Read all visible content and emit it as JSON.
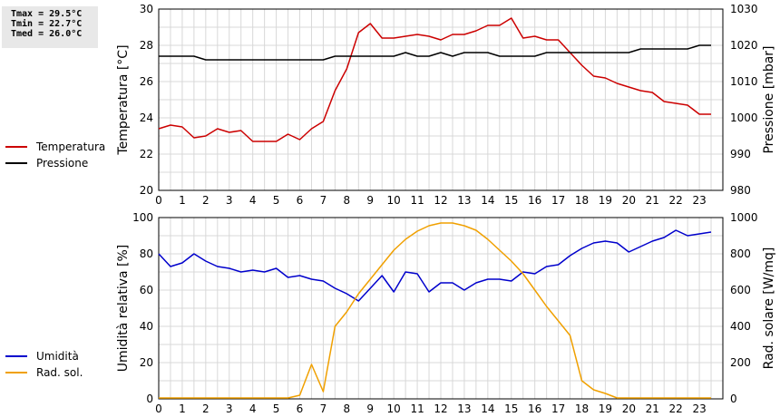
{
  "stats": {
    "tmax": "Tmax = 29.5°C",
    "tmin": "Tmin = 22.7°C",
    "tmed": "Tmed = 26.0°C"
  },
  "colors": {
    "temperature": "#cc0000",
    "pressure": "#000000",
    "humidity": "#0000cc",
    "radiation": "#f0a000",
    "grid": "#d8d8d8"
  },
  "chart_data": [
    {
      "type": "line",
      "xlim": [
        0,
        24
      ],
      "x_ticks": [
        "0",
        "1",
        "2",
        "3",
        "4",
        "5",
        "6",
        "7",
        "8",
        "9",
        "10",
        "11",
        "12",
        "13",
        "14",
        "15",
        "16",
        "17",
        "18",
        "19",
        "20",
        "21",
        "22",
        "23"
      ],
      "ylabel_left": "Temperatura [°C]",
      "ylabel_right": "Pressione [mbar]",
      "ylim_left": [
        20,
        30
      ],
      "ylim_right": [
        980,
        1030
      ],
      "yticks_left": [
        "20",
        "22",
        "24",
        "26",
        "28",
        "30"
      ],
      "yticks_right": [
        "980",
        "990",
        "1000",
        "1010",
        "1020",
        "1030"
      ],
      "legend": [
        "Temperatura",
        "Pressione"
      ],
      "series": [
        {
          "name": "Temperatura",
          "axis": "left",
          "x": [
            0,
            0.5,
            1,
            1.5,
            2,
            2.5,
            3,
            3.5,
            4,
            4.5,
            5,
            5.5,
            6,
            6.5,
            7,
            7.5,
            8,
            8.5,
            9,
            9.5,
            10,
            10.5,
            11,
            11.5,
            12,
            12.5,
            13,
            13.5,
            14,
            14.5,
            15,
            15.5,
            16,
            16.5,
            17,
            17.5,
            18,
            18.5,
            19,
            19.5,
            20,
            20.5,
            21,
            21.5,
            22,
            22.5,
            23,
            23.5
          ],
          "values": [
            23.4,
            23.6,
            23.5,
            22.9,
            23.0,
            23.4,
            23.2,
            23.3,
            22.7,
            22.7,
            22.7,
            23.1,
            22.8,
            23.4,
            23.8,
            25.5,
            26.7,
            28.7,
            29.2,
            28.4,
            28.4,
            28.5,
            28.6,
            28.5,
            28.3,
            28.6,
            28.6,
            28.8,
            29.1,
            29.1,
            29.5,
            28.4,
            28.5,
            28.3,
            28.3,
            27.6,
            26.9,
            26.3,
            26.2,
            25.9,
            25.7,
            25.5,
            25.4,
            24.9,
            24.8,
            24.7,
            24.2,
            24.2
          ]
        },
        {
          "name": "Pressione",
          "axis": "right",
          "x": [
            0,
            0.5,
            1,
            1.5,
            2,
            2.5,
            3,
            3.5,
            4,
            4.5,
            5,
            5.5,
            6,
            6.5,
            7,
            7.5,
            8,
            8.5,
            9,
            9.5,
            10,
            10.5,
            11,
            11.5,
            12,
            12.5,
            13,
            13.5,
            14,
            14.5,
            15,
            15.5,
            16,
            16.5,
            17,
            17.5,
            18,
            18.5,
            19,
            19.5,
            20,
            20.5,
            21,
            21.5,
            22,
            22.5,
            23,
            23.5
          ],
          "values": [
            1017,
            1017,
            1017,
            1017,
            1016,
            1016,
            1016,
            1016,
            1016,
            1016,
            1016,
            1016,
            1016,
            1016,
            1016,
            1017,
            1017,
            1017,
            1017,
            1017,
            1017,
            1018,
            1017,
            1017,
            1018,
            1017,
            1018,
            1018,
            1018,
            1017,
            1017,
            1017,
            1017,
            1018,
            1018,
            1018,
            1018,
            1018,
            1018,
            1018,
            1018,
            1019,
            1019,
            1019,
            1019,
            1019,
            1020,
            1020
          ]
        }
      ]
    },
    {
      "type": "line",
      "xlim": [
        0,
        24
      ],
      "x_ticks": [
        "0",
        "1",
        "2",
        "3",
        "4",
        "5",
        "6",
        "7",
        "8",
        "9",
        "10",
        "11",
        "12",
        "13",
        "14",
        "15",
        "16",
        "17",
        "18",
        "19",
        "20",
        "21",
        "22",
        "23"
      ],
      "ylabel_left": "Umidità relativa [%]",
      "ylabel_right": "Rad. solare [W/mq]",
      "ylim_left": [
        0,
        100
      ],
      "ylim_right": [
        0,
        1000
      ],
      "yticks_left": [
        "0",
        "20",
        "40",
        "60",
        "80",
        "100"
      ],
      "yticks_right": [
        "0",
        "200",
        "400",
        "600",
        "800",
        "1000"
      ],
      "legend": [
        "Umidità",
        "Rad. sol."
      ],
      "series": [
        {
          "name": "Umidità",
          "axis": "left",
          "x": [
            0,
            0.5,
            1,
            1.5,
            2,
            2.5,
            3,
            3.5,
            4,
            4.5,
            5,
            5.5,
            6,
            6.5,
            7,
            7.5,
            8,
            8.5,
            9,
            9.5,
            10,
            10.5,
            11,
            11.5,
            12,
            12.5,
            13,
            13.5,
            14,
            14.5,
            15,
            15.5,
            16,
            16.5,
            17,
            17.5,
            18,
            18.5,
            19,
            19.5,
            20,
            20.5,
            21,
            21.5,
            22,
            22.5,
            23,
            23.5
          ],
          "values": [
            80,
            73,
            75,
            80,
            76,
            73,
            72,
            70,
            71,
            70,
            72,
            67,
            68,
            66,
            65,
            61,
            58,
            54,
            61,
            68,
            59,
            70,
            69,
            59,
            64,
            64,
            60,
            64,
            66,
            66,
            65,
            70,
            69,
            73,
            74,
            79,
            83,
            86,
            87,
            86,
            81,
            84,
            87,
            89,
            93,
            90,
            91,
            92
          ]
        },
        {
          "name": "Rad. sol.",
          "axis": "right",
          "x": [
            0,
            0.5,
            1,
            1.5,
            2,
            2.5,
            3,
            3.5,
            4,
            4.5,
            5,
            5.5,
            6,
            6.5,
            7,
            7.5,
            8,
            8.5,
            9,
            9.5,
            10,
            10.5,
            11,
            11.5,
            12,
            12.5,
            13,
            13.5,
            14,
            14.5,
            15,
            15.5,
            16,
            16.5,
            17,
            17.5,
            18,
            18.5,
            19,
            19.5,
            20,
            20.5,
            21,
            21.5,
            22,
            22.5,
            23,
            23.5
          ],
          "values": [
            5,
            5,
            5,
            5,
            5,
            5,
            5,
            5,
            5,
            5,
            5,
            5,
            20,
            190,
            40,
            400,
            480,
            580,
            660,
            740,
            820,
            880,
            925,
            955,
            970,
            970,
            955,
            930,
            880,
            820,
            760,
            690,
            600,
            510,
            430,
            350,
            100,
            50,
            30,
            5,
            5,
            5,
            5,
            5,
            5,
            5,
            5,
            5
          ]
        }
      ]
    }
  ]
}
